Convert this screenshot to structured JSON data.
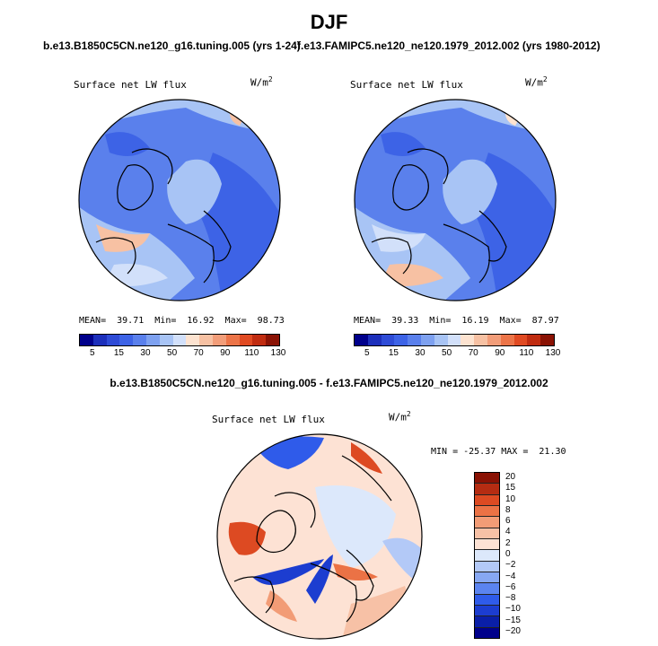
{
  "header": {
    "season": "DJF",
    "left_run": "b.e13.B1850C5CN.ne120_g16.tuning.005 (yrs 1-24)",
    "right_run": "f.e13.FAMIPC5.ne120_ne120.1979_2012.002 (yrs 1980-2012)",
    "diff_title": "b.e13.B1850C5CN.ne120_g16.tuning.005 - f.e13.FAMIPC5.ne120_ne120.1979_2012.002"
  },
  "panels": {
    "left": {
      "label": "Surface net LW flux",
      "units": "W/m",
      "units_sup": "2",
      "stats": "MEAN=  39.71  Min=  16.92  Max=  98.73"
    },
    "right": {
      "label": "Surface net LW flux",
      "units": "W/m",
      "units_sup": "2",
      "stats": "MEAN=  39.33  Min=  16.19  Max=  87.97"
    },
    "diff": {
      "label": "Surface net LW flux",
      "units": "W/m",
      "units_sup": "2",
      "stats": "MIN = -25.37 MAX =  21.30"
    }
  },
  "colors": {
    "abs_scale": [
      "#00008b",
      "#1c2fbb",
      "#2e4bd6",
      "#3d63e6",
      "#5a80ec",
      "#7ea1f0",
      "#a8c4f5",
      "#d2e0fa",
      "#fde3d0",
      "#f7c1a3",
      "#f29d79",
      "#ec7448",
      "#e04a22",
      "#c02c10",
      "#8a1204"
    ],
    "diff_scale": [
      "#00008b",
      "#0a1fa8",
      "#1c3dd0",
      "#2f5bea",
      "#5b84f0",
      "#87a8f3",
      "#b3c9f7",
      "#dce8fb",
      "#fde2d4",
      "#f7c1a6",
      "#f29c76",
      "#eb7245",
      "#dd4a22",
      "#b52c12",
      "#8a1204"
    ]
  },
  "chart_data": [
    {
      "type": "heatmap",
      "title": "Surface net LW flux",
      "subtitle": "b.e13.B1850C5CN.ne120_g16.tuning.005 (yrs 1-24)",
      "projection": "north polar stereographic",
      "units": "W/m2",
      "mean": 39.71,
      "min": 16.92,
      "max": 98.73,
      "colorbar_levels": [
        5,
        10,
        15,
        20,
        30,
        40,
        50,
        60,
        70,
        80,
        90,
        100,
        110,
        120,
        130
      ],
      "colorbar_tick_labels": [
        "5",
        "15",
        "30",
        "50",
        "70",
        "90",
        "110",
        "130"
      ]
    },
    {
      "type": "heatmap",
      "title": "Surface net LW flux",
      "subtitle": "f.e13.FAMIPC5.ne120_ne120.1979_2012.002 (yrs 1980-2012)",
      "projection": "north polar stereographic",
      "units": "W/m2",
      "mean": 39.33,
      "min": 16.19,
      "max": 87.97,
      "colorbar_levels": [
        5,
        10,
        15,
        20,
        30,
        40,
        50,
        60,
        70,
        80,
        90,
        100,
        110,
        120,
        130
      ],
      "colorbar_tick_labels": [
        "5",
        "15",
        "30",
        "50",
        "70",
        "90",
        "110",
        "130"
      ]
    },
    {
      "type": "heatmap",
      "title": "Surface net LW flux",
      "subtitle": "b.e13.B1850C5CN.ne120_g16.tuning.005 - f.e13.FAMIPC5.ne120_ne120.1979_2012.002",
      "projection": "north polar stereographic",
      "units": "W/m2",
      "min": -25.37,
      "max": 21.3,
      "colorbar_levels": [
        -20,
        -15,
        -10,
        -8,
        -6,
        -4,
        -2,
        0,
        2,
        4,
        6,
        8,
        10,
        15,
        20
      ],
      "colorbar_tick_labels": [
        "20",
        "15",
        "10",
        "8",
        "6",
        "4",
        "2",
        "0",
        "−2",
        "−4",
        "−6",
        "−8",
        "−10",
        "−15",
        "−20"
      ]
    }
  ]
}
